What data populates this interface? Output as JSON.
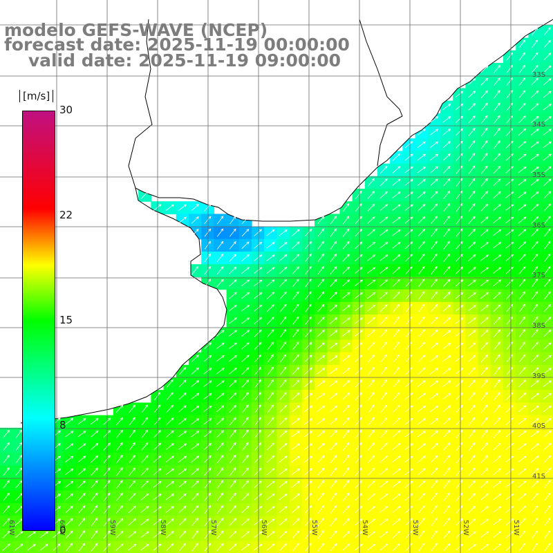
{
  "header": {
    "line1": "modelo GEFS-WAVE (NCEP)",
    "line2": "forecast date: 2025-11-19 00:00:00",
    "line3": "    valid date: 2025-11-19 09:00:00"
  },
  "colorbar": {
    "unit": "[m/s]",
    "ticks": [
      "30",
      "22",
      "15",
      "8",
      "0"
    ],
    "tick_values": [
      30,
      22,
      15,
      8,
      0
    ],
    "min": 0,
    "max": 30,
    "stops": [
      {
        "v": 0,
        "c": "#0000ff"
      },
      {
        "v": 8,
        "c": "#00ffff"
      },
      {
        "v": 15,
        "c": "#00ff00"
      },
      {
        "v": 19,
        "c": "#ffff00"
      },
      {
        "v": 23,
        "c": "#ff0000"
      },
      {
        "v": 30,
        "c": "#c01080"
      }
    ]
  },
  "map": {
    "lat_labels": [
      "33S",
      "34S",
      "35S",
      "36S",
      "37S",
      "38S",
      "39S",
      "40S",
      "41S"
    ],
    "lon_labels": [
      "61W",
      "60W",
      "59W",
      "58W",
      "57W",
      "56W",
      "55W",
      "54W",
      "53W",
      "52W",
      "51W"
    ],
    "land_color": "#ffffff",
    "coast_color": "#000000",
    "grid_color": "#666666",
    "arrow_color": "#ffffff",
    "field_description_unit": "m/s"
  }
}
